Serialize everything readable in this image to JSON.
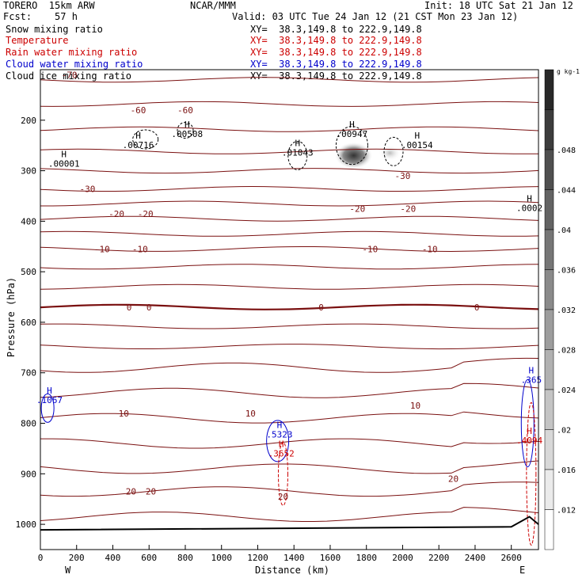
{
  "header": {
    "model": "TORERO  15km ARW",
    "center": "NCAR/MMM",
    "init": "Init: 18 UTC Sat 21 Jan 12",
    "fcst": "Fcst:    57 h",
    "valid": "Valid: 03 UTC Tue 24 Jan 12 (21 CST Mon 23 Jan 12)"
  },
  "fields": [
    {
      "name": "Snow mixing ratio",
      "xy": "XY=  38.3,149.8 to 222.9,149.8",
      "color": "#000000",
      "xy_color": "#000000"
    },
    {
      "name": "Temperature",
      "xy": "XY=  38.3,149.8 to 222.9,149.8",
      "color": "#cc0000",
      "xy_color": "#cc0000"
    },
    {
      "name": "Rain water mixing ratio",
      "xy": "XY=  38.3,149.8 to 222.9,149.8",
      "color": "#cc0000",
      "xy_color": "#cc0000"
    },
    {
      "name": "Cloud water mixing ratio",
      "xy": "XY=  38.3,149.8 to 222.9,149.8",
      "color": "#0000cc",
      "xy_color": "#0000cc"
    },
    {
      "name": "Cloud ice mixing ratio",
      "xy": "XY=  38.3,149.8 to 222.9,149.8",
      "color": "#000000",
      "xy_color": "#000000"
    }
  ],
  "chart_data": {
    "type": "cross-section",
    "xlabel": "Distance (km)",
    "ylabel": "Pressure (hPa)",
    "x_ticks": [
      0,
      200,
      400,
      600,
      800,
      1000,
      1200,
      1400,
      1600,
      1800,
      2000,
      2200,
      2400,
      2600
    ],
    "y_ticks": [
      200,
      300,
      400,
      500,
      600,
      700,
      800,
      900,
      1000
    ],
    "xlim": [
      0,
      2750
    ],
    "ylim": [
      100,
      1050
    ],
    "endpoints": {
      "left": "W",
      "right": "E"
    },
    "colorbar": {
      "unit": "g kg-1",
      "ticks": [
        ".012",
        ".016",
        ".02",
        ".024",
        ".028",
        ".032",
        ".036",
        ".04",
        ".044",
        ".048"
      ]
    },
    "temperature_labels": [
      {
        "text": "-70",
        "x": 160,
        "p": 110
      },
      {
        "text": "-60",
        "x": 540,
        "p": 180
      },
      {
        "text": "-60",
        "x": 800,
        "p": 180
      },
      {
        "text": "-30",
        "x": 260,
        "p": 336
      },
      {
        "text": "-30",
        "x": 2000,
        "p": 310
      },
      {
        "text": "-20",
        "x": 420,
        "p": 385
      },
      {
        "text": "-20",
        "x": 580,
        "p": 385
      },
      {
        "text": "-20",
        "x": 1750,
        "p": 375
      },
      {
        "text": "-20",
        "x": 2030,
        "p": 375
      },
      {
        "text": "-10",
        "x": 340,
        "p": 455
      },
      {
        "text": "-10",
        "x": 550,
        "p": 455
      },
      {
        "text": "-10",
        "x": 1820,
        "p": 455
      },
      {
        "text": "-10",
        "x": 2150,
        "p": 455
      },
      {
        "text": "0",
        "x": 490,
        "p": 570
      },
      {
        "text": "0",
        "x": 600,
        "p": 570
      },
      {
        "text": "0",
        "x": 1550,
        "p": 570
      },
      {
        "text": "0",
        "x": 2410,
        "p": 570
      },
      {
        "text": "10",
        "x": 460,
        "p": 780
      },
      {
        "text": "10",
        "x": 1160,
        "p": 780
      },
      {
        "text": "10",
        "x": 2070,
        "p": 765
      },
      {
        "text": "20",
        "x": 500,
        "p": 935
      },
      {
        "text": "20",
        "x": 610,
        "p": 935
      },
      {
        "text": "20",
        "x": 1340,
        "p": 945
      },
      {
        "text": "20",
        "x": 2280,
        "p": 910
      }
    ],
    "maxima": [
      {
        "text": ".00001",
        "x": 130,
        "p": 292,
        "color": "#000000"
      },
      {
        "text": ".00716",
        "x": 540,
        "p": 255,
        "color": "#000000"
      },
      {
        "text": ".00508",
        "x": 810,
        "p": 233,
        "color": "#000000"
      },
      {
        "text": ".01043",
        "x": 1420,
        "p": 270,
        "color": "#000000"
      },
      {
        "text": ".00947",
        "x": 1720,
        "p": 233,
        "color": "#000000"
      },
      {
        "text": ".00154",
        "x": 2080,
        "p": 255,
        "color": "#000000"
      },
      {
        "text": ".0002",
        "x": 2700,
        "p": 380,
        "color": "#000000"
      },
      {
        "text": ".1067",
        "x": 50,
        "p": 760,
        "color": "#0000cc"
      },
      {
        "text": ".5323",
        "x": 1320,
        "p": 828,
        "color": "#0000cc"
      },
      {
        "text": ".3652",
        "x": 1330,
        "p": 866,
        "color": "#cc0000"
      },
      {
        "text": ".365",
        "x": 2710,
        "p": 720,
        "color": "#0000cc"
      },
      {
        "text": ".4094",
        "x": 2700,
        "p": 840,
        "color": "#cc0000"
      }
    ],
    "snow_blob": {
      "x": 1730,
      "p": 270,
      "max": 0.048
    }
  }
}
